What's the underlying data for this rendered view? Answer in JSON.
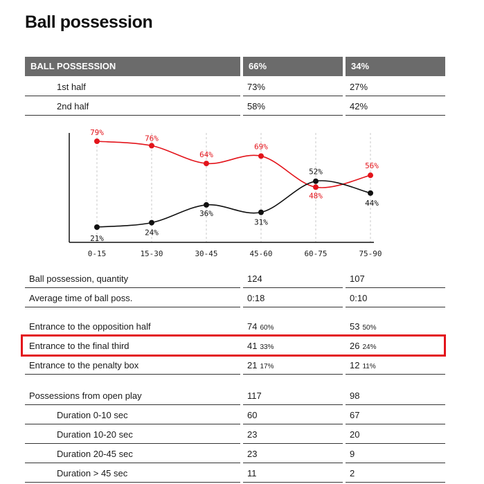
{
  "title": "Ball possession",
  "header": {
    "label": "BALL POSSESSION",
    "home": "66%",
    "away": "34%"
  },
  "halves": [
    {
      "label": "1st half",
      "home": "73%",
      "away": "27%"
    },
    {
      "label": "2nd half",
      "home": "58%",
      "away": "42%"
    }
  ],
  "chart_data": {
    "type": "line",
    "categories": [
      "0-15",
      "15-30",
      "30-45",
      "45-60",
      "60-75",
      "75-90"
    ],
    "series": [
      {
        "values": [
          79,
          76,
          64,
          69,
          48,
          56
        ],
        "labels": [
          "79%",
          "76%",
          "64%",
          "69%",
          "48%",
          "56%"
        ],
        "color": "#e3141b"
      },
      {
        "values": [
          21,
          24,
          36,
          31,
          52,
          44
        ],
        "labels": [
          "21%",
          "24%",
          "36%",
          "31%",
          "52%",
          "44%"
        ],
        "color": "#111111"
      }
    ],
    "ylim": [
      10,
      90
    ],
    "grid": "vertical dashed"
  },
  "stats": {
    "quantity": {
      "label": "Ball possession, quantity",
      "home": "124",
      "away": "107"
    },
    "avg_time": {
      "label": "Average time of ball poss.",
      "home": "0:18",
      "away": "0:10"
    },
    "opp_half": {
      "label": "Entrance to the opposition half",
      "home": "74",
      "home_pct": "60%",
      "away": "53",
      "away_pct": "50%"
    },
    "final_third": {
      "label": "Entrance to the final third",
      "home": "41",
      "home_pct": "33%",
      "away": "26",
      "away_pct": "24%"
    },
    "penalty_box": {
      "label": "Entrance to the penalty box",
      "home": "21",
      "home_pct": "17%",
      "away": "12",
      "away_pct": "11%"
    },
    "open_play": {
      "label": "Possessions from open play",
      "home": "117",
      "away": "98"
    },
    "d1": {
      "label": "Duration  0-10 sec",
      "home": "60",
      "away": "67"
    },
    "d2": {
      "label": "Duration  10-20 sec",
      "home": "23",
      "away": "20"
    },
    "d3": {
      "label": "Duration  20-45 sec",
      "home": "23",
      "away": "9"
    },
    "d4": {
      "label": "Duration  > 45 sec",
      "home": "11",
      "away": "2"
    }
  },
  "highlight_color": "#e3141b"
}
